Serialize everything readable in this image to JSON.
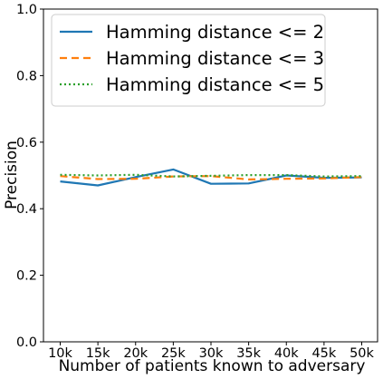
{
  "chart_data": {
    "type": "line",
    "categories": [
      "10k",
      "15k",
      "20k",
      "25k",
      "30k",
      "35k",
      "40k",
      "45k",
      "50k"
    ],
    "xlabel": "Number of patients known to adversary",
    "ylabel": "Precision",
    "ylim": [
      0.0,
      1.0
    ],
    "yticks": [
      "0.0",
      "0.2",
      "0.4",
      "0.6",
      "0.8",
      "1.0"
    ],
    "grid": false,
    "legend_position": "top-left",
    "series": [
      {
        "name": "Hamming distance <= 2",
        "color": "#1f77b4",
        "style": "solid",
        "values": [
          0.482,
          0.47,
          0.495,
          0.518,
          0.475,
          0.476,
          0.5,
          0.493,
          0.494
        ]
      },
      {
        "name": "Hamming distance <= 3",
        "color": "#ff7f0e",
        "style": "dashed",
        "values": [
          0.498,
          0.489,
          0.49,
          0.497,
          0.498,
          0.488,
          0.49,
          0.491,
          0.495
        ]
      },
      {
        "name": "Hamming distance <= 5",
        "color": "#2ca02c",
        "style": "dotted",
        "values": [
          0.502,
          0.5,
          0.502,
          0.497,
          0.499,
          0.501,
          0.501,
          0.497,
          0.498
        ]
      }
    ]
  }
}
